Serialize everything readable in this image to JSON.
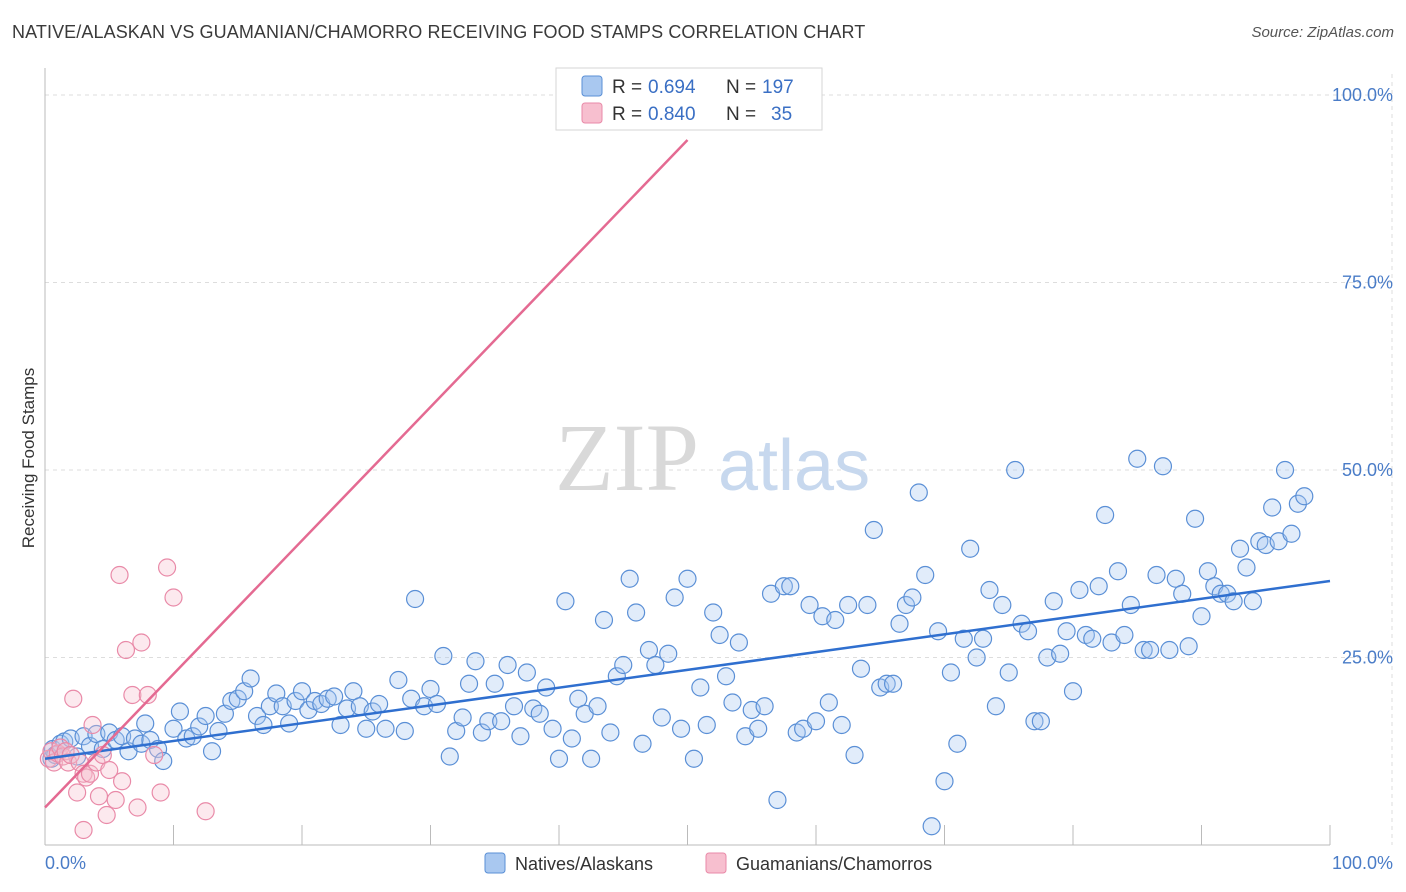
{
  "header": {
    "title": "NATIVE/ALASKAN VS GUAMANIAN/CHAMORRO RECEIVING FOOD STAMPS CORRELATION CHART",
    "source": "Source: ZipAtlas.com"
  },
  "watermark": {
    "zip": "ZIP",
    "atlas": "atlas"
  },
  "colors": {
    "blue_fill": "#a9c8f0",
    "blue_stroke": "#5a8fd6",
    "blue_line": "#2f6fcf",
    "pink_fill": "#f7bfcf",
    "pink_stroke": "#e98aa8",
    "pink_line": "#e46a92",
    "tick_text": "#4a7cc7",
    "grid": "#dddddd"
  },
  "legend_top": {
    "rows": [
      {
        "r_label": "R =",
        "r_value": "0.694",
        "n_label": "N =",
        "n_value": "197"
      },
      {
        "r_label": "R =",
        "r_value": "0.840",
        "n_label": "N =",
        "n_value": "35"
      }
    ]
  },
  "chart_data": {
    "type": "scatter",
    "title": "NATIVE/ALASKAN VS GUAMANIAN/CHAMORRO RECEIVING FOOD STAMPS CORRELATION CHART",
    "xlabel": "",
    "ylabel": "Receiving Food Stamps",
    "xlim": [
      0,
      100
    ],
    "ylim": [
      0,
      102
    ],
    "x_tick_labels": [
      "0.0%",
      "100.0%"
    ],
    "y_ticks": [
      {
        "value": 25,
        "label": "25.0%"
      },
      {
        "value": 50,
        "label": "50.0%"
      },
      {
        "value": 75,
        "label": "75.0%"
      },
      {
        "value": 100,
        "label": "100.0%"
      }
    ],
    "grid": true,
    "legend_position": "top-center",
    "series": [
      {
        "name": "Natives/Alaskans",
        "color": "#a9c8f0",
        "r": 0.694,
        "n": 197,
        "trend": {
          "x": [
            0,
            100
          ],
          "y": [
            11.5,
            35.2
          ]
        },
        "points": [
          [
            0.5,
            11.5
          ],
          [
            0.6,
            12.8
          ],
          [
            0.8,
            12.0
          ],
          [
            1.2,
            13.5
          ],
          [
            1.5,
            13.8
          ],
          [
            2.0,
            14.2
          ],
          [
            2.5,
            11.8
          ],
          [
            3.0,
            14.5
          ],
          [
            3.5,
            13.2
          ],
          [
            4.0,
            14.8
          ],
          [
            4.5,
            12.8
          ],
          [
            5.0,
            15.0
          ],
          [
            5.5,
            14.0
          ],
          [
            6.0,
            14.5
          ],
          [
            6.5,
            12.5
          ],
          [
            7.0,
            14.2
          ],
          [
            7.5,
            13.5
          ],
          [
            7.8,
            16.2
          ],
          [
            8.2,
            14.0
          ],
          [
            8.8,
            12.8
          ],
          [
            9.2,
            11.2
          ],
          [
            10.0,
            15.5
          ],
          [
            10.5,
            17.8
          ],
          [
            11.0,
            14.2
          ],
          [
            11.5,
            14.5
          ],
          [
            12.0,
            15.8
          ],
          [
            12.5,
            17.2
          ],
          [
            13.0,
            12.5
          ],
          [
            13.5,
            15.2
          ],
          [
            14.0,
            17.5
          ],
          [
            14.5,
            19.2
          ],
          [
            15.0,
            19.5
          ],
          [
            15.5,
            20.5
          ],
          [
            16.0,
            22.2
          ],
          [
            16.5,
            17.2
          ],
          [
            17.0,
            16.0
          ],
          [
            17.5,
            18.5
          ],
          [
            18.0,
            20.2
          ],
          [
            18.5,
            18.5
          ],
          [
            19.0,
            16.2
          ],
          [
            19.5,
            19.2
          ],
          [
            20.0,
            20.5
          ],
          [
            20.5,
            18.0
          ],
          [
            21.0,
            19.2
          ],
          [
            21.5,
            18.8
          ],
          [
            22.0,
            19.5
          ],
          [
            22.5,
            19.8
          ],
          [
            23.0,
            16.0
          ],
          [
            23.5,
            18.2
          ],
          [
            24.0,
            20.5
          ],
          [
            24.5,
            18.5
          ],
          [
            25.0,
            15.5
          ],
          [
            25.5,
            17.8
          ],
          [
            26.0,
            18.8
          ],
          [
            26.5,
            15.5
          ],
          [
            27.5,
            22.0
          ],
          [
            28.0,
            15.2
          ],
          [
            28.5,
            19.5
          ],
          [
            28.8,
            32.8
          ],
          [
            29.5,
            18.5
          ],
          [
            30.0,
            20.8
          ],
          [
            30.5,
            18.8
          ],
          [
            31.0,
            25.2
          ],
          [
            31.5,
            11.8
          ],
          [
            32.0,
            15.2
          ],
          [
            32.5,
            17.0
          ],
          [
            33.0,
            21.5
          ],
          [
            33.5,
            24.5
          ],
          [
            34.0,
            15.0
          ],
          [
            34.5,
            16.5
          ],
          [
            35.0,
            21.5
          ],
          [
            35.5,
            16.5
          ],
          [
            36.0,
            24.0
          ],
          [
            36.5,
            18.5
          ],
          [
            37.0,
            14.5
          ],
          [
            37.5,
            23.0
          ],
          [
            38.0,
            18.2
          ],
          [
            38.5,
            17.5
          ],
          [
            39.0,
            21.0
          ],
          [
            39.5,
            15.5
          ],
          [
            40.0,
            11.5
          ],
          [
            40.5,
            32.5
          ],
          [
            41.0,
            14.2
          ],
          [
            41.5,
            19.5
          ],
          [
            42.0,
            17.5
          ],
          [
            42.5,
            11.5
          ],
          [
            43.0,
            18.5
          ],
          [
            43.5,
            30.0
          ],
          [
            44.0,
            15.0
          ],
          [
            44.5,
            22.5
          ],
          [
            45.0,
            24.0
          ],
          [
            45.5,
            35.5
          ],
          [
            46.0,
            31.0
          ],
          [
            46.5,
            13.5
          ],
          [
            47.0,
            26.0
          ],
          [
            47.5,
            24.0
          ],
          [
            48.0,
            17.0
          ],
          [
            48.5,
            25.5
          ],
          [
            49.0,
            33.0
          ],
          [
            49.5,
            15.5
          ],
          [
            50.0,
            35.5
          ],
          [
            50.5,
            11.5
          ],
          [
            51.0,
            21.0
          ],
          [
            51.5,
            16.0
          ],
          [
            52.0,
            31.0
          ],
          [
            52.5,
            28.0
          ],
          [
            53.0,
            22.5
          ],
          [
            53.5,
            19.0
          ],
          [
            54.0,
            27.0
          ],
          [
            54.5,
            14.5
          ],
          [
            55.0,
            18.0
          ],
          [
            55.5,
            15.5
          ],
          [
            56.0,
            18.5
          ],
          [
            56.5,
            33.5
          ],
          [
            57.0,
            6.0
          ],
          [
            57.5,
            34.5
          ],
          [
            58.0,
            34.5
          ],
          [
            58.5,
            15.0
          ],
          [
            59.0,
            15.5
          ],
          [
            59.5,
            32.0
          ],
          [
            60.0,
            16.5
          ],
          [
            60.5,
            30.5
          ],
          [
            61.0,
            19.0
          ],
          [
            61.5,
            30.0
          ],
          [
            62.0,
            16.0
          ],
          [
            62.5,
            32.0
          ],
          [
            63.0,
            12.0
          ],
          [
            63.5,
            23.5
          ],
          [
            64.0,
            32.0
          ],
          [
            64.5,
            42.0
          ],
          [
            65.0,
            21.0
          ],
          [
            65.5,
            21.5
          ],
          [
            66.0,
            21.5
          ],
          [
            66.5,
            29.5
          ],
          [
            67.0,
            32.0
          ],
          [
            67.5,
            33.0
          ],
          [
            68.0,
            47.0
          ],
          [
            68.5,
            36.0
          ],
          [
            69.0,
            2.5
          ],
          [
            69.5,
            28.5
          ],
          [
            70.0,
            8.5
          ],
          [
            70.5,
            23.0
          ],
          [
            71.0,
            13.5
          ],
          [
            71.5,
            27.5
          ],
          [
            72.0,
            39.5
          ],
          [
            72.5,
            25.0
          ],
          [
            73.0,
            27.5
          ],
          [
            73.5,
            34.0
          ],
          [
            74.0,
            18.5
          ],
          [
            74.5,
            32.0
          ],
          [
            75.0,
            23.0
          ],
          [
            75.5,
            50.0
          ],
          [
            76.0,
            29.5
          ],
          [
            76.5,
            28.5
          ],
          [
            77.0,
            16.5
          ],
          [
            77.5,
            16.5
          ],
          [
            78.0,
            25.0
          ],
          [
            78.5,
            32.5
          ],
          [
            79.0,
            25.5
          ],
          [
            79.5,
            28.5
          ],
          [
            80.0,
            20.5
          ],
          [
            80.5,
            34.0
          ],
          [
            81.0,
            28.0
          ],
          [
            81.5,
            27.5
          ],
          [
            82.0,
            34.5
          ],
          [
            82.5,
            44.0
          ],
          [
            83.0,
            27.0
          ],
          [
            83.5,
            36.5
          ],
          [
            84.0,
            28.0
          ],
          [
            84.5,
            32.0
          ],
          [
            85.0,
            51.5
          ],
          [
            85.5,
            26.0
          ],
          [
            86.0,
            26.0
          ],
          [
            86.5,
            36.0
          ],
          [
            87.0,
            50.5
          ],
          [
            87.5,
            26.0
          ],
          [
            88.0,
            35.5
          ],
          [
            88.5,
            33.5
          ],
          [
            89.0,
            26.5
          ],
          [
            89.5,
            43.5
          ],
          [
            90.0,
            30.5
          ],
          [
            90.5,
            36.5
          ],
          [
            91.0,
            34.5
          ],
          [
            91.5,
            33.5
          ],
          [
            92.0,
            33.5
          ],
          [
            92.5,
            32.5
          ],
          [
            93.0,
            39.5
          ],
          [
            93.5,
            37.0
          ],
          [
            94.0,
            32.5
          ],
          [
            94.5,
            40.5
          ],
          [
            95.0,
            40.0
          ],
          [
            95.5,
            45.0
          ],
          [
            96.0,
            40.5
          ],
          [
            96.5,
            50.0
          ],
          [
            97.0,
            41.5
          ],
          [
            97.5,
            45.5
          ],
          [
            98.0,
            46.5
          ]
        ]
      },
      {
        "name": "Guamanians/Chamorros",
        "color": "#f7bfcf",
        "r": 0.84,
        "n": 35,
        "trend": {
          "x": [
            0,
            50
          ],
          "y": [
            5.0,
            94.0
          ]
        },
        "points": [
          [
            0.3,
            11.5
          ],
          [
            0.5,
            12.5
          ],
          [
            0.7,
            11.0
          ],
          [
            1.0,
            12.2
          ],
          [
            1.2,
            13.0
          ],
          [
            1.4,
            11.8
          ],
          [
            1.6,
            12.5
          ],
          [
            1.8,
            11.0
          ],
          [
            2.0,
            12.0
          ],
          [
            2.2,
            19.5
          ],
          [
            2.5,
            7.0
          ],
          [
            2.7,
            11.0
          ],
          [
            3.0,
            9.5
          ],
          [
            3.2,
            9.0
          ],
          [
            3.5,
            9.5
          ],
          [
            3.7,
            16.0
          ],
          [
            4.0,
            11.0
          ],
          [
            4.2,
            6.5
          ],
          [
            4.5,
            12.0
          ],
          [
            4.8,
            4.0
          ],
          [
            5.0,
            10.0
          ],
          [
            5.5,
            6.0
          ],
          [
            5.8,
            36.0
          ],
          [
            6.0,
            8.5
          ],
          [
            6.3,
            26.0
          ],
          [
            6.8,
            20.0
          ],
          [
            7.2,
            5.0
          ],
          [
            7.5,
            27.0
          ],
          [
            8.0,
            20.0
          ],
          [
            8.5,
            12.0
          ],
          [
            9.0,
            7.0
          ],
          [
            9.5,
            37.0
          ],
          [
            10.0,
            33.0
          ],
          [
            12.5,
            4.5
          ],
          [
            3.0,
            2.0
          ]
        ]
      }
    ]
  }
}
